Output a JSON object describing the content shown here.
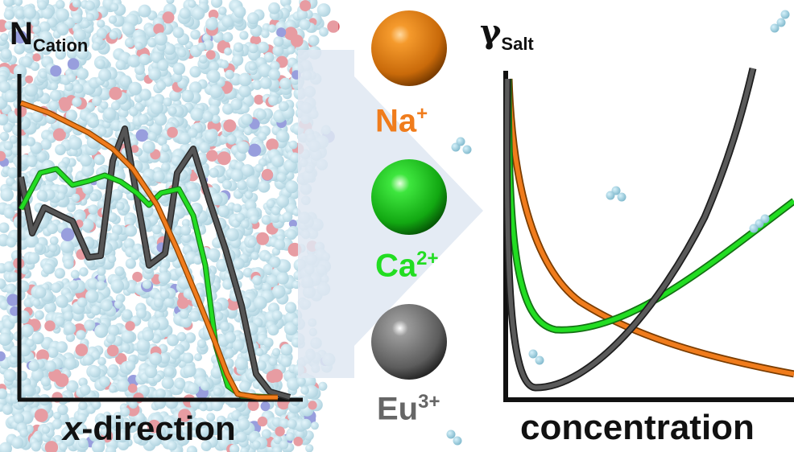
{
  "left_panel": {
    "y_label_main": "N",
    "y_label_sub": "Cation",
    "x_label_italic": "x",
    "x_label_rest": "-direction"
  },
  "ions": [
    {
      "symbol": "Na",
      "charge": "+",
      "color": "#f07c1c",
      "sphere": "#e07a12"
    },
    {
      "symbol": "Ca",
      "charge": "2+",
      "color": "#22dd22",
      "sphere": "#17c417"
    },
    {
      "symbol": "Eu",
      "charge": "3+",
      "color": "#666666",
      "sphere": "#707070"
    }
  ],
  "right_panel": {
    "y_label_main": "γ",
    "y_label_sub": "Salt",
    "x_label": "concentration"
  },
  "colors": {
    "na": "#f07c1c",
    "ca": "#22dd22",
    "eu": "#4a4a4a",
    "arrow": "#dfe8f2",
    "molecule_bg": "#aacfdf"
  }
}
